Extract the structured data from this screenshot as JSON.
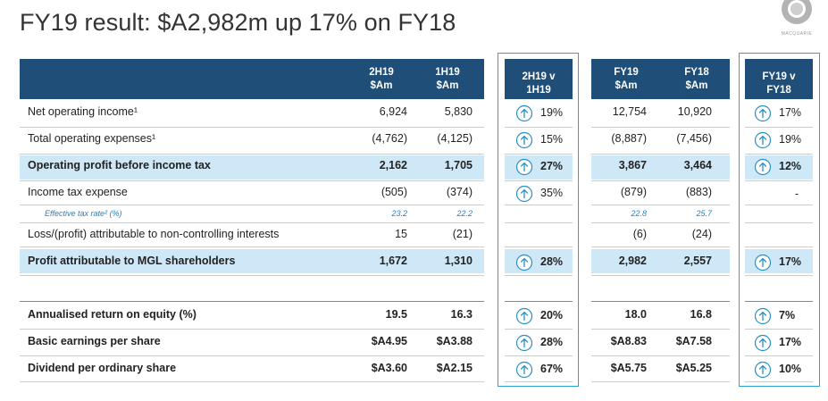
{
  "title": "FY19 result: $A2,982m up 17% on FY18",
  "brand": "MACQUARIE",
  "columns": {
    "h2h19": "2H19\n$Am",
    "h1h19": "1H19\n$Am",
    "chg_half": "2H19 v\n1H19",
    "fy19": "FY19\n$Am",
    "fy18": "FY18\n$Am",
    "chg_year": "FY19 v\nFY18"
  },
  "colors": {
    "header": "#1f4e79",
    "highlight": "#cfe8f7",
    "accent": "#2aa3d8"
  },
  "rows": [
    {
      "label": "Net operating income¹",
      "h2h19": "6,924",
      "h1h19": "5,830",
      "chg_half": "19%",
      "fy19": "12,754",
      "fy18": "10,920",
      "chg_year": "17%"
    },
    {
      "label": "Total operating expenses¹",
      "h2h19": "(4,762)",
      "h1h19": "(4,125)",
      "chg_half": "15%",
      "fy19": "(8,887)",
      "fy18": "(7,456)",
      "chg_year": "19%"
    },
    {
      "label": "Operating profit before income tax",
      "h2h19": "2,162",
      "h1h19": "1,705",
      "chg_half": "27%",
      "fy19": "3,867",
      "fy18": "3,464",
      "chg_year": "12%"
    },
    {
      "label": "Income tax expense",
      "h2h19": "(505)",
      "h1h19": "(374)",
      "chg_half": "35%",
      "fy19": "(879)",
      "fy18": "(883)",
      "chg_year": "-"
    },
    {
      "label": "Effective tax rate² (%)",
      "h2h19": "23.2",
      "h1h19": "22.2",
      "fy19": "22.8",
      "fy18": "25.7"
    },
    {
      "label": "Loss/(profit) attributable to non-controlling interests",
      "h2h19": "15",
      "h1h19": "(21)",
      "fy19": "(6)",
      "fy18": "(24)"
    },
    {
      "label": "Profit attributable to MGL shareholders",
      "h2h19": "1,672",
      "h1h19": "1,310",
      "chg_half": "28%",
      "fy19": "2,982",
      "fy18": "2,557",
      "chg_year": "17%"
    },
    {
      "label": "Annualised return on equity (%)",
      "h2h19": "19.5",
      "h1h19": "16.3",
      "chg_half": "20%",
      "fy19": "18.0",
      "fy18": "16.8",
      "chg_year": "7%"
    },
    {
      "label": "Basic earnings per share",
      "h2h19": "$A4.95",
      "h1h19": "$A3.88",
      "chg_half": "28%",
      "fy19": "$A8.83",
      "fy18": "$A7.58",
      "chg_year": "17%"
    },
    {
      "label": "Dividend per ordinary share",
      "h2h19": "$A3.60",
      "h1h19": "$A2.15",
      "chg_half": "67%",
      "fy19": "$A5.75",
      "fy18": "$A5.25",
      "chg_year": "10%"
    }
  ]
}
